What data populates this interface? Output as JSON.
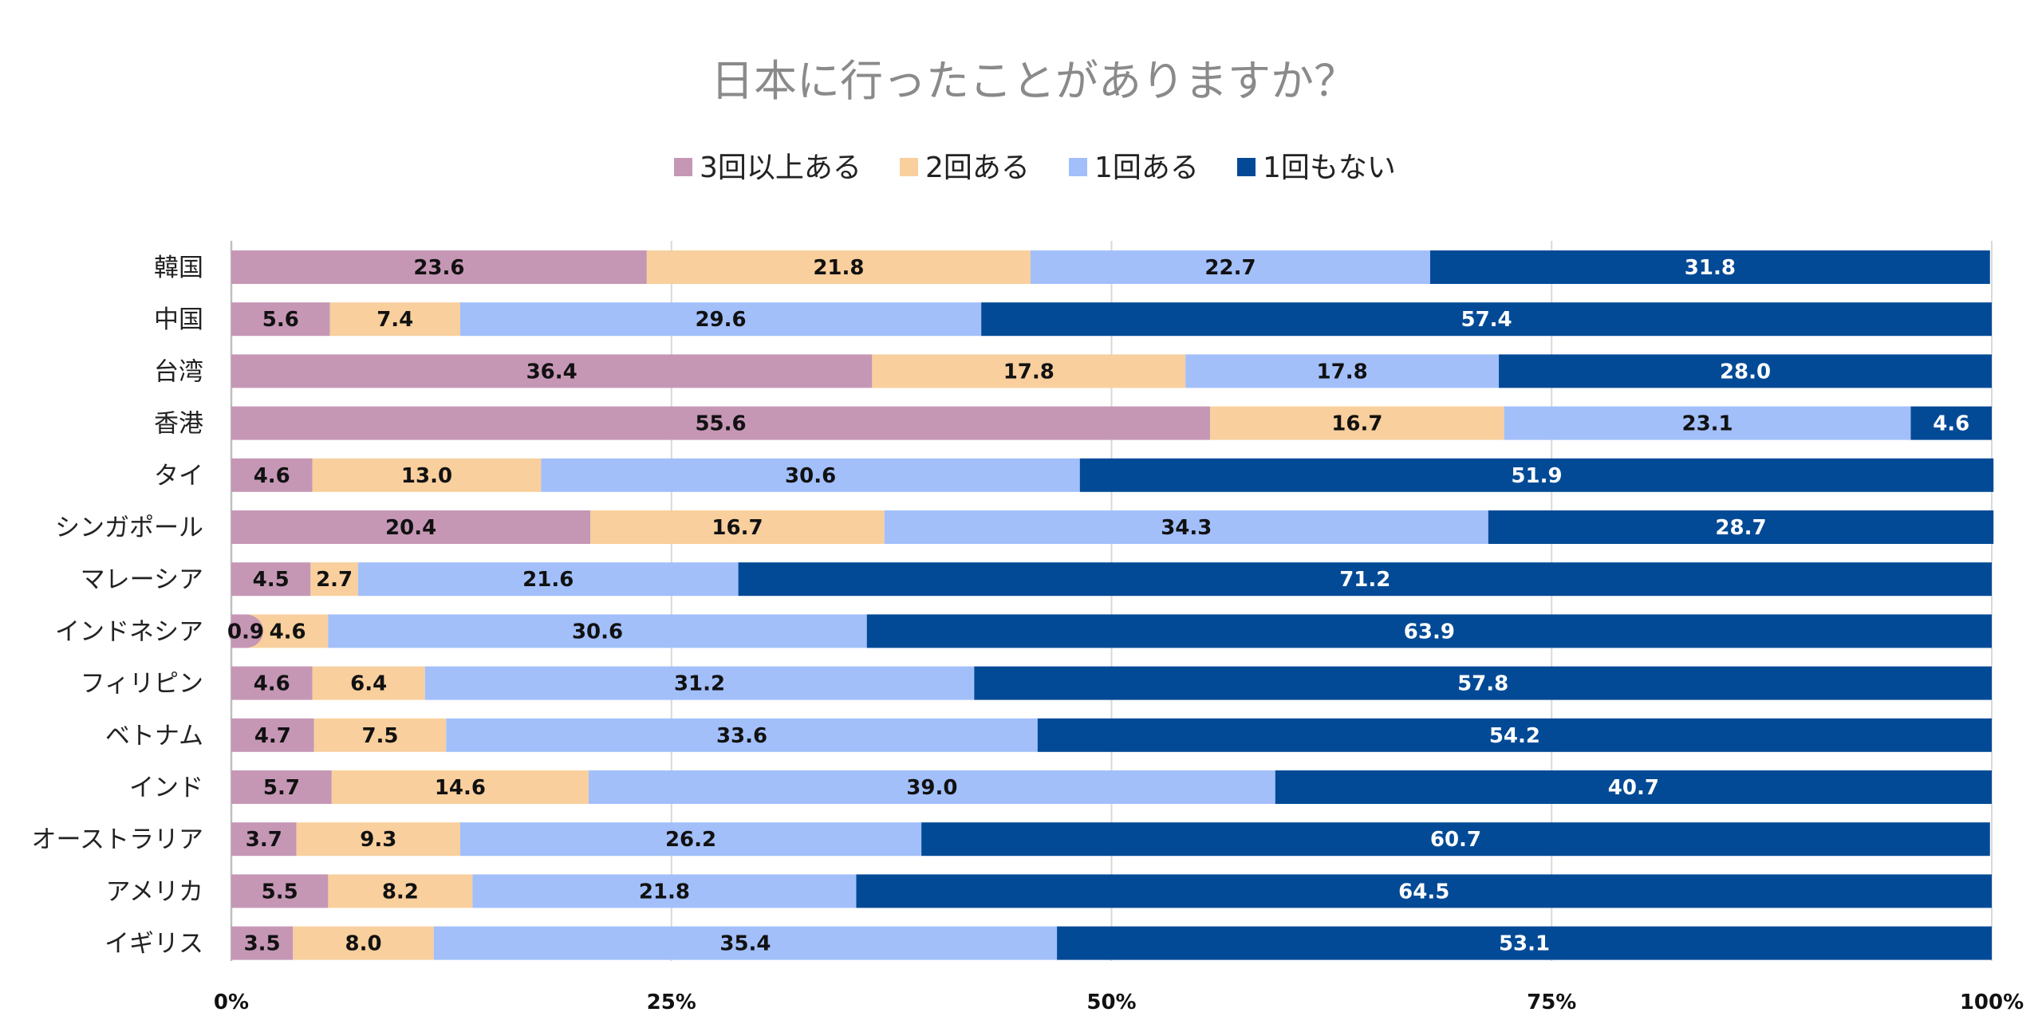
{
  "chart_data": {
    "type": "bar",
    "orientation": "horizontal",
    "stacked": "percent",
    "title": "日本に行ったことがありますか？",
    "categories": [
      "韓国",
      "中国",
      "台湾",
      "香港",
      "タイ",
      "シンガポール",
      "マレーシア",
      "インドネシア",
      "フィリピン",
      "ベトナム",
      "インド",
      "オーストラリア",
      "アメリカ",
      "イギリス"
    ],
    "series": [
      {
        "name": "3回以上ある",
        "color": "#c597b5",
        "values": [
          23.6,
          5.6,
          36.4,
          55.6,
          4.6,
          20.4,
          4.5,
          0.9,
          4.6,
          4.7,
          5.7,
          3.7,
          5.5,
          3.5
        ]
      },
      {
        "name": "2回ある",
        "color": "#f8cf9d",
        "values": [
          21.8,
          7.4,
          17.8,
          16.7,
          13.0,
          16.7,
          2.7,
          4.6,
          6.4,
          7.5,
          14.6,
          9.3,
          8.2,
          8.0
        ]
      },
      {
        "name": "1回ある",
        "color": "#a2bffa",
        "values": [
          22.7,
          29.6,
          17.8,
          23.1,
          30.6,
          34.3,
          21.6,
          30.6,
          31.2,
          33.6,
          39.0,
          26.2,
          21.8,
          35.4
        ]
      },
      {
        "name": "1回もない",
        "color": "#034a96",
        "values": [
          31.8,
          57.4,
          28.0,
          4.6,
          51.9,
          28.7,
          71.2,
          63.9,
          57.8,
          54.2,
          40.7,
          60.7,
          64.5,
          53.1
        ]
      }
    ],
    "x_ticks": [
      "0%",
      "25%",
      "50%",
      "75%",
      "100%"
    ],
    "xlim": [
      0,
      100
    ],
    "grid": true,
    "legend_position": "top"
  }
}
